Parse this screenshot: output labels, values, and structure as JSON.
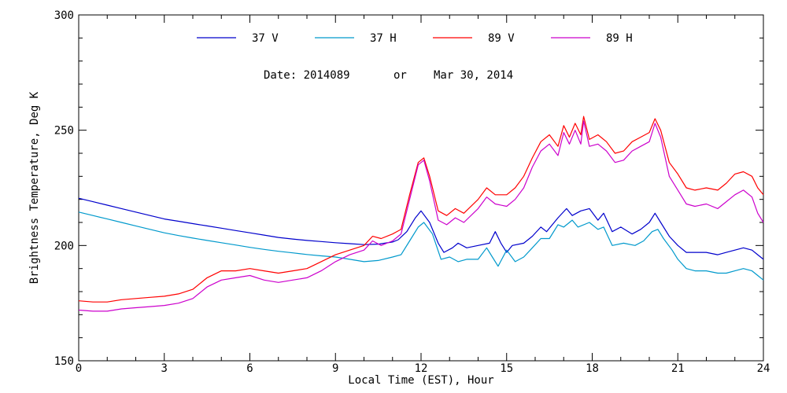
{
  "chart_data": {
    "type": "line",
    "title": "",
    "xlabel": "Local Time (EST), Hour",
    "ylabel": "Brightness Temperature, Deg K",
    "xlim": [
      0,
      24
    ],
    "ylim": [
      150,
      300
    ],
    "x_ticks": [
      "0",
      "3",
      "6",
      "9",
      "12",
      "15",
      "18",
      "21",
      "24"
    ],
    "y_ticks": [
      "150",
      "200",
      "250",
      "300"
    ],
    "legend": {
      "placement": "top-center"
    },
    "annotation": {
      "date_label": "Date: 2014089",
      "or_label": "or",
      "date_text": "Mar 30, 2014"
    },
    "grid": false,
    "series": [
      {
        "name": "37 V",
        "color": "#0000cc",
        "points": [
          [
            0,
            220.5
          ],
          [
            0.5,
            219
          ],
          [
            1,
            217.5
          ],
          [
            1.5,
            216
          ],
          [
            2,
            214.5
          ],
          [
            2.5,
            213
          ],
          [
            3,
            211.5
          ],
          [
            3.5,
            210.5
          ],
          [
            4,
            209.5
          ],
          [
            4.5,
            208.5
          ],
          [
            5,
            207.5
          ],
          [
            5.5,
            206.5
          ],
          [
            6,
            205.5
          ],
          [
            6.5,
            204.5
          ],
          [
            7,
            203.5
          ],
          [
            7.5,
            202.8
          ],
          [
            8,
            202.2
          ],
          [
            8.5,
            201.7
          ],
          [
            9,
            201.2
          ],
          [
            9.5,
            200.8
          ],
          [
            10,
            200.4
          ],
          [
            10.5,
            200.6
          ],
          [
            11,
            201.5
          ],
          [
            11.2,
            202.5
          ],
          [
            11.5,
            206
          ],
          [
            11.8,
            212
          ],
          [
            12,
            215
          ],
          [
            12.3,
            210
          ],
          [
            12.6,
            201
          ],
          [
            12.8,
            197
          ],
          [
            13.1,
            199
          ],
          [
            13.3,
            201
          ],
          [
            13.6,
            199
          ],
          [
            14,
            200
          ],
          [
            14.4,
            201
          ],
          [
            14.6,
            206
          ],
          [
            14.8,
            201
          ],
          [
            15,
            197
          ],
          [
            15.2,
            200
          ],
          [
            15.6,
            201
          ],
          [
            15.9,
            204
          ],
          [
            16.2,
            208
          ],
          [
            16.4,
            206
          ],
          [
            16.8,
            212
          ],
          [
            17.1,
            216
          ],
          [
            17.3,
            213
          ],
          [
            17.6,
            215
          ],
          [
            17.9,
            216
          ],
          [
            18.2,
            211
          ],
          [
            18.4,
            214
          ],
          [
            18.7,
            206
          ],
          [
            19,
            208
          ],
          [
            19.4,
            205
          ],
          [
            19.7,
            207
          ],
          [
            20,
            210
          ],
          [
            20.2,
            214
          ],
          [
            20.4,
            210
          ],
          [
            20.7,
            204
          ],
          [
            21,
            200
          ],
          [
            21.3,
            197
          ],
          [
            21.6,
            197
          ],
          [
            22,
            197
          ],
          [
            22.4,
            196
          ],
          [
            22.7,
            197
          ],
          [
            23,
            198
          ],
          [
            23.3,
            199
          ],
          [
            23.6,
            198
          ],
          [
            23.8,
            196
          ],
          [
            24,
            194
          ]
        ]
      },
      {
        "name": "37 H",
        "color": "#0099cc",
        "points": [
          [
            0,
            214.5
          ],
          [
            0.5,
            213
          ],
          [
            1,
            211.5
          ],
          [
            1.5,
            210
          ],
          [
            2,
            208.5
          ],
          [
            2.5,
            207
          ],
          [
            3,
            205.5
          ],
          [
            3.5,
            204.3
          ],
          [
            4,
            203.2
          ],
          [
            4.5,
            202.2
          ],
          [
            5,
            201.2
          ],
          [
            5.5,
            200.2
          ],
          [
            6,
            199.2
          ],
          [
            6.5,
            198.3
          ],
          [
            7,
            197.5
          ],
          [
            7.5,
            196.8
          ],
          [
            8,
            196.1
          ],
          [
            8.5,
            195.5
          ],
          [
            9,
            195
          ],
          [
            9.5,
            194
          ],
          [
            10,
            193
          ],
          [
            10.5,
            193.5
          ],
          [
            11,
            195
          ],
          [
            11.3,
            196
          ],
          [
            11.6,
            202
          ],
          [
            11.9,
            208
          ],
          [
            12.1,
            210
          ],
          [
            12.4,
            205
          ],
          [
            12.7,
            194
          ],
          [
            13,
            195
          ],
          [
            13.3,
            193
          ],
          [
            13.6,
            194
          ],
          [
            14,
            194
          ],
          [
            14.3,
            199
          ],
          [
            14.5,
            195
          ],
          [
            14.7,
            191
          ],
          [
            15,
            198
          ],
          [
            15.3,
            193
          ],
          [
            15.6,
            195
          ],
          [
            15.9,
            199
          ],
          [
            16.2,
            203
          ],
          [
            16.5,
            203
          ],
          [
            16.8,
            209
          ],
          [
            17,
            208
          ],
          [
            17.3,
            211
          ],
          [
            17.5,
            208
          ],
          [
            17.9,
            210
          ],
          [
            18.2,
            207
          ],
          [
            18.4,
            208
          ],
          [
            18.7,
            200
          ],
          [
            19.1,
            201
          ],
          [
            19.5,
            200
          ],
          [
            19.8,
            202
          ],
          [
            20.1,
            206
          ],
          [
            20.3,
            207
          ],
          [
            20.5,
            203
          ],
          [
            20.8,
            198
          ],
          [
            21,
            194
          ],
          [
            21.3,
            190
          ],
          [
            21.6,
            189
          ],
          [
            22,
            189
          ],
          [
            22.4,
            188
          ],
          [
            22.7,
            188
          ],
          [
            23,
            189
          ],
          [
            23.3,
            190
          ],
          [
            23.6,
            189
          ],
          [
            23.8,
            187
          ],
          [
            24,
            185
          ]
        ]
      },
      {
        "name": "89 V",
        "color": "#ff0000",
        "points": [
          [
            0,
            176
          ],
          [
            0.5,
            175.5
          ],
          [
            1,
            175.5
          ],
          [
            1.5,
            176.5
          ],
          [
            2,
            177
          ],
          [
            2.5,
            177.5
          ],
          [
            3,
            178
          ],
          [
            3.5,
            179
          ],
          [
            4,
            181
          ],
          [
            4.5,
            186
          ],
          [
            5,
            189
          ],
          [
            5.5,
            189
          ],
          [
            6,
            190
          ],
          [
            6.5,
            189
          ],
          [
            7,
            188
          ],
          [
            7.5,
            189
          ],
          [
            8,
            190
          ],
          [
            8.5,
            193
          ],
          [
            9,
            196
          ],
          [
            9.5,
            198
          ],
          [
            10,
            200
          ],
          [
            10.3,
            204
          ],
          [
            10.6,
            203
          ],
          [
            11,
            205
          ],
          [
            11.3,
            207
          ],
          [
            11.6,
            222
          ],
          [
            11.9,
            236
          ],
          [
            12.1,
            238
          ],
          [
            12.3,
            230
          ],
          [
            12.6,
            215
          ],
          [
            12.9,
            213
          ],
          [
            13.2,
            216
          ],
          [
            13.5,
            214
          ],
          [
            14,
            220
          ],
          [
            14.3,
            225
          ],
          [
            14.6,
            222
          ],
          [
            15,
            222
          ],
          [
            15.3,
            225
          ],
          [
            15.6,
            230
          ],
          [
            15.9,
            238
          ],
          [
            16.2,
            245
          ],
          [
            16.5,
            248
          ],
          [
            16.8,
            243
          ],
          [
            17,
            252
          ],
          [
            17.2,
            247
          ],
          [
            17.4,
            253
          ],
          [
            17.6,
            248
          ],
          [
            17.7,
            256
          ],
          [
            17.9,
            246
          ],
          [
            18.2,
            248
          ],
          [
            18.5,
            245
          ],
          [
            18.8,
            240
          ],
          [
            19.1,
            241
          ],
          [
            19.4,
            245
          ],
          [
            19.7,
            247
          ],
          [
            20,
            249
          ],
          [
            20.2,
            255
          ],
          [
            20.4,
            250
          ],
          [
            20.7,
            236
          ],
          [
            21,
            231
          ],
          [
            21.3,
            225
          ],
          [
            21.6,
            224
          ],
          [
            22,
            225
          ],
          [
            22.4,
            224
          ],
          [
            22.7,
            227
          ],
          [
            23,
            231
          ],
          [
            23.3,
            232
          ],
          [
            23.6,
            230
          ],
          [
            23.8,
            225
          ],
          [
            24,
            222
          ]
        ]
      },
      {
        "name": "89 H",
        "color": "#cc00cc",
        "points": [
          [
            0,
            172
          ],
          [
            0.5,
            171.5
          ],
          [
            1,
            171.5
          ],
          [
            1.5,
            172.5
          ],
          [
            2,
            173
          ],
          [
            2.5,
            173.5
          ],
          [
            3,
            174
          ],
          [
            3.5,
            175
          ],
          [
            4,
            177
          ],
          [
            4.5,
            182
          ],
          [
            5,
            185
          ],
          [
            5.5,
            186
          ],
          [
            6,
            187
          ],
          [
            6.5,
            185
          ],
          [
            7,
            184
          ],
          [
            7.5,
            185
          ],
          [
            8,
            186
          ],
          [
            8.5,
            189
          ],
          [
            9,
            193
          ],
          [
            9.5,
            196
          ],
          [
            10,
            198
          ],
          [
            10.3,
            202
          ],
          [
            10.6,
            200
          ],
          [
            11,
            202
          ],
          [
            11.3,
            205
          ],
          [
            11.6,
            220
          ],
          [
            11.9,
            235
          ],
          [
            12.1,
            237
          ],
          [
            12.3,
            228
          ],
          [
            12.6,
            211
          ],
          [
            12.9,
            209
          ],
          [
            13.2,
            212
          ],
          [
            13.5,
            210
          ],
          [
            14,
            216
          ],
          [
            14.3,
            221
          ],
          [
            14.6,
            218
          ],
          [
            15,
            217
          ],
          [
            15.3,
            220
          ],
          [
            15.6,
            225
          ],
          [
            15.9,
            234
          ],
          [
            16.2,
            241
          ],
          [
            16.5,
            244
          ],
          [
            16.8,
            239
          ],
          [
            17,
            249
          ],
          [
            17.2,
            244
          ],
          [
            17.4,
            250
          ],
          [
            17.6,
            244
          ],
          [
            17.7,
            254
          ],
          [
            17.9,
            243
          ],
          [
            18.2,
            244
          ],
          [
            18.5,
            241
          ],
          [
            18.8,
            236
          ],
          [
            19.1,
            237
          ],
          [
            19.4,
            241
          ],
          [
            19.7,
            243
          ],
          [
            20,
            245
          ],
          [
            20.2,
            253
          ],
          [
            20.4,
            247
          ],
          [
            20.7,
            230
          ],
          [
            21,
            224
          ],
          [
            21.3,
            218
          ],
          [
            21.6,
            217
          ],
          [
            22,
            218
          ],
          [
            22.4,
            216
          ],
          [
            22.7,
            219
          ],
          [
            23,
            222
          ],
          [
            23.3,
            224
          ],
          [
            23.6,
            221
          ],
          [
            23.8,
            214
          ],
          [
            24,
            210
          ]
        ]
      }
    ]
  }
}
